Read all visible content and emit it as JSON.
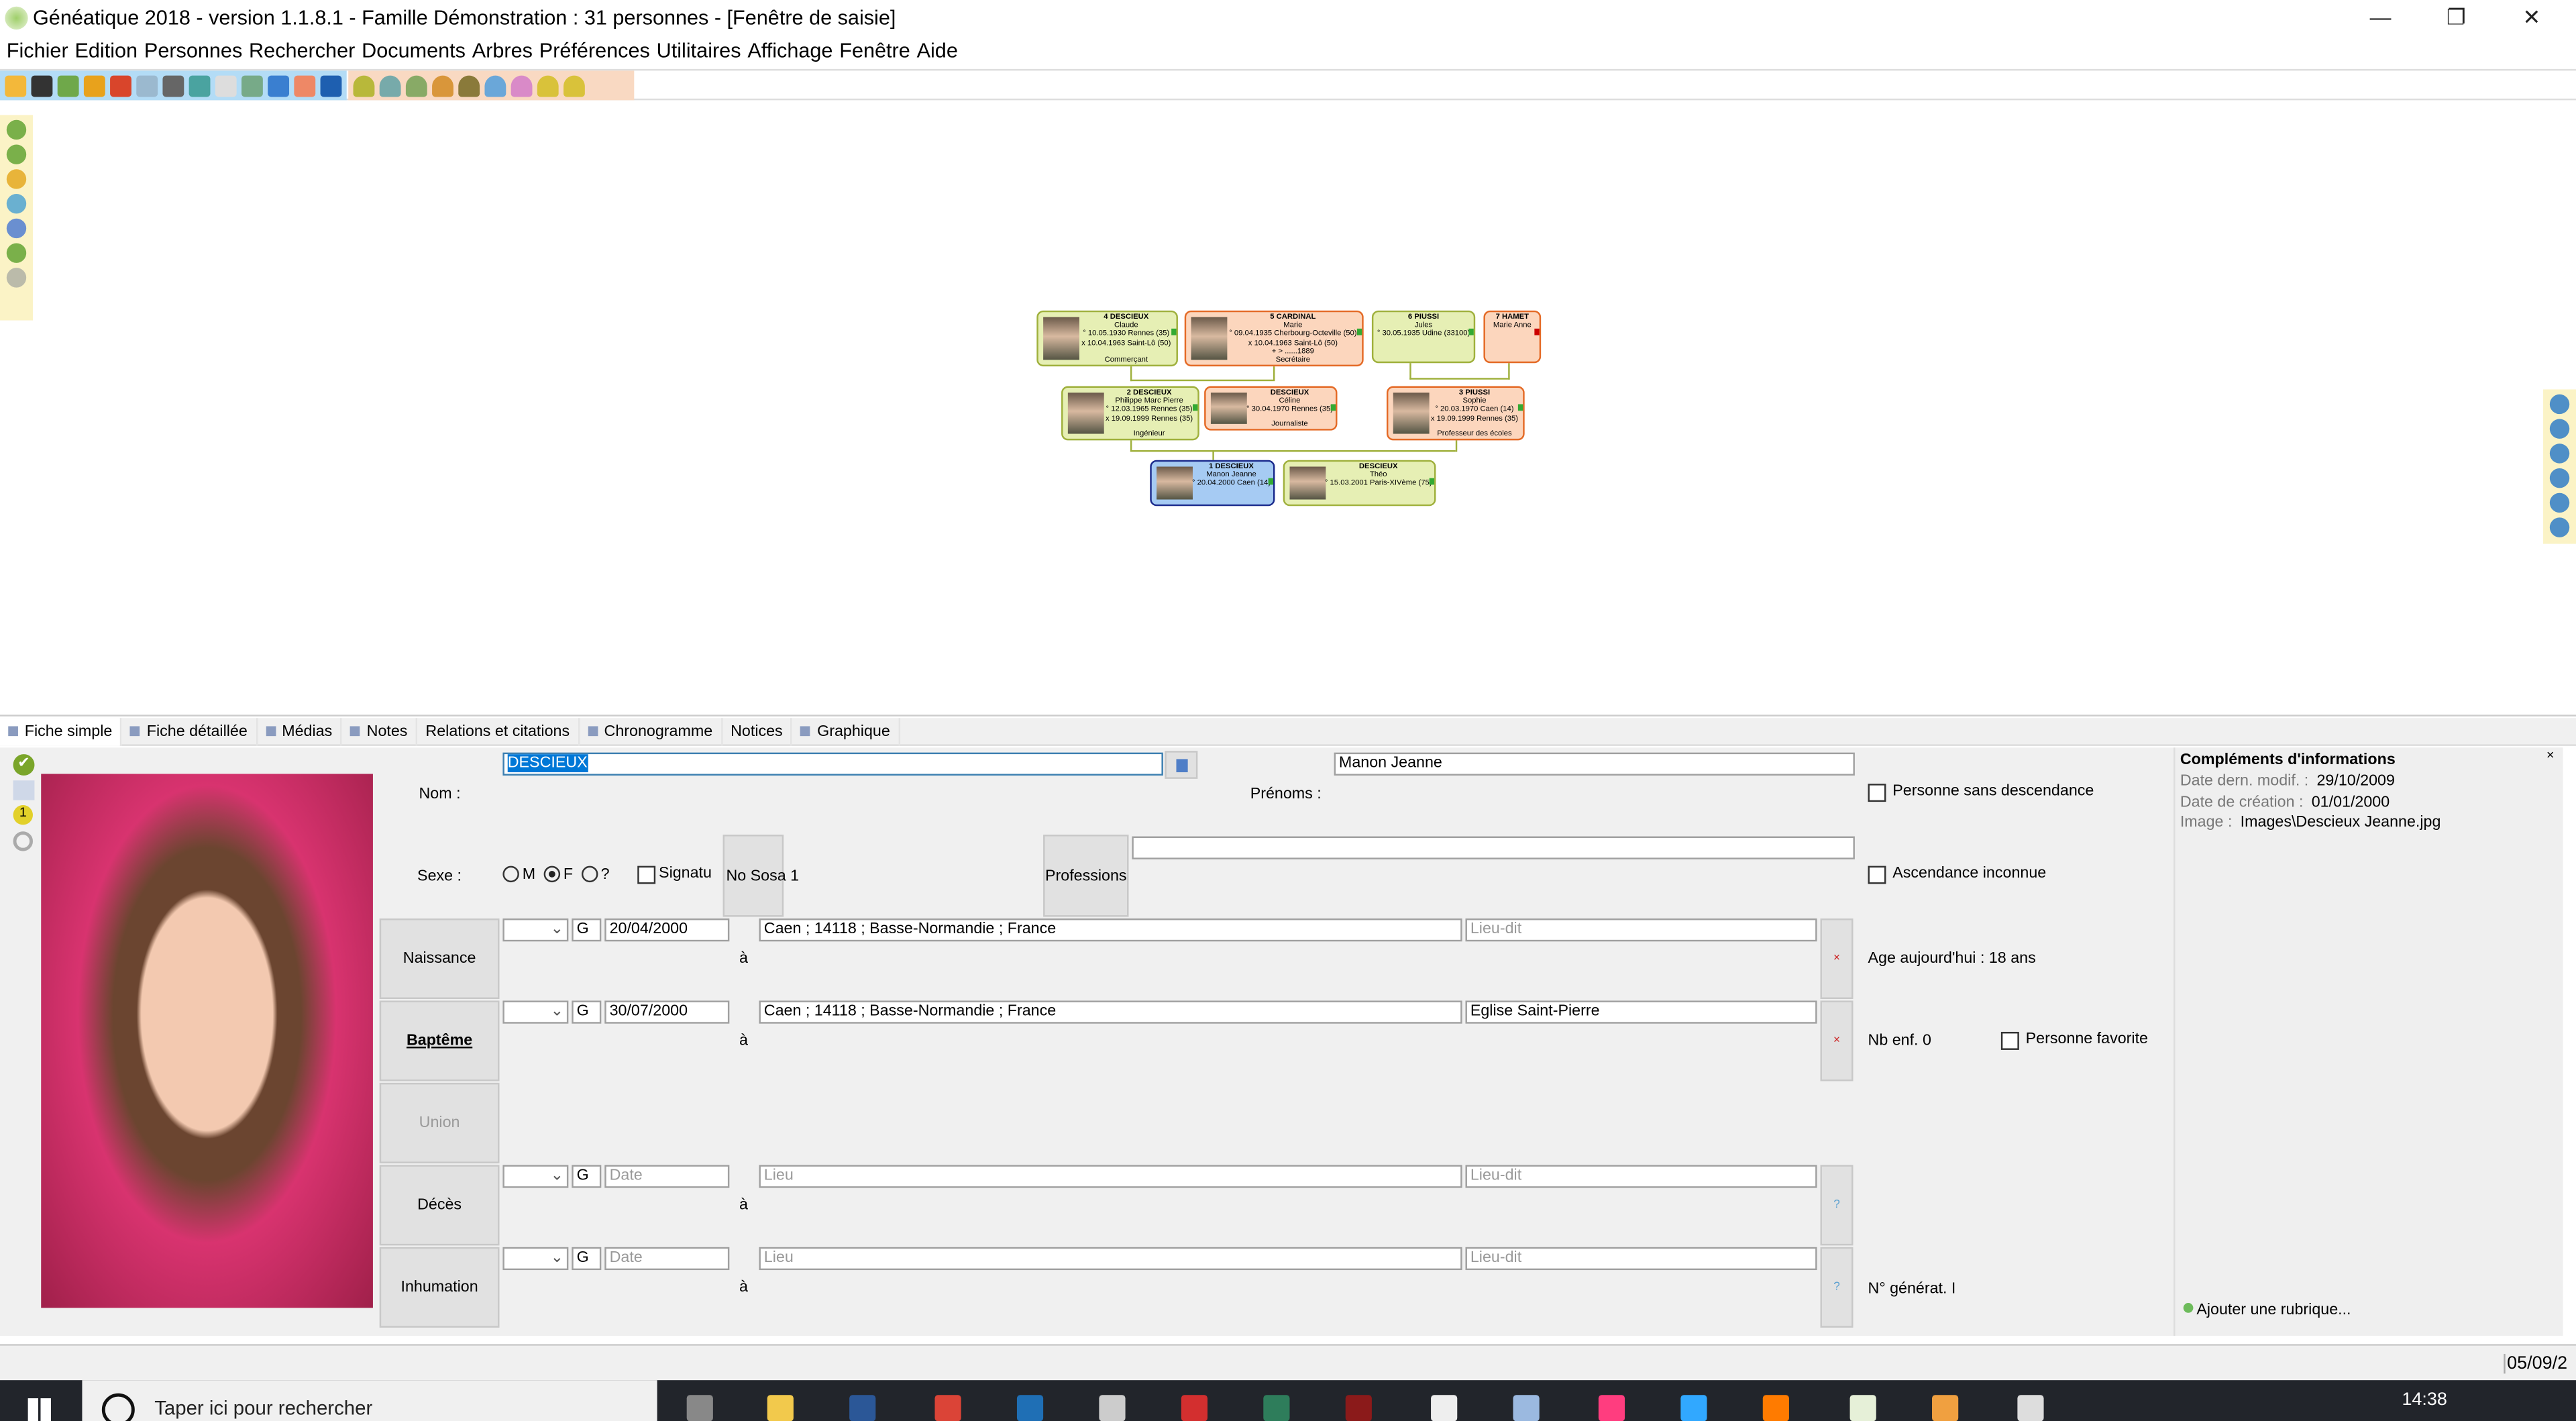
{
  "window": {
    "title": "Généatique 2018 - version 1.1.8.1 - Famille Démonstration : 31 personnes - [Fenêtre de saisie]",
    "minimize": "—",
    "restore": "❐",
    "close": "✕"
  },
  "menu": [
    "Fichier",
    "Edition",
    "Personnes",
    "Rechercher",
    "Documents",
    "Arbres",
    "Préférences",
    "Utilitaires",
    "Affichage",
    "Fenêtre",
    "Aide"
  ],
  "colors": {
    "toolbar_blue": "#b3dcf6",
    "toolbar_orange": "#f9d9c2",
    "male_box": "#e6efb4",
    "female_box": "#fcd6bd",
    "selected_box": "#a6cbf3",
    "taskbar": "#22252b"
  },
  "tree": {
    "persons": [
      {
        "id": "p4",
        "sex": "m",
        "name": "4 DESCIEUX",
        "first": "Claude",
        "lines": [
          "° 10.05.1930 Rennes (35)",
          "x 10.04.1963 Saint-Lô (50)"
        ],
        "job": "Commerçant"
      },
      {
        "id": "p5",
        "sex": "f",
        "name": "5 CARDINAL",
        "first": "Marie",
        "lines": [
          "° 09.04.1935 Cherbourg-Octeville (50)",
          "x 10.04.1963 Saint-Lô (50)",
          "+ > ......1889"
        ],
        "job": "Secrétaire"
      },
      {
        "id": "p6",
        "sex": "m",
        "name": "6 PIUSSI",
        "first": "Jules",
        "lines": [
          "° 30.05.1935 Udine (33100)"
        ],
        "job": ""
      },
      {
        "id": "p7",
        "sex": "f",
        "name": "7 HAMET",
        "first": "Marie Anne",
        "lines": [],
        "job": ""
      },
      {
        "id": "p2",
        "sex": "m",
        "name": "2 DESCIEUX",
        "first": "Philippe Marc Pierre",
        "lines": [
          "° 12.03.1965 Rennes (35)",
          "x 19.09.1999 Rennes (35)"
        ],
        "job": "Ingénieur"
      },
      {
        "id": "pc",
        "sex": "f",
        "name": "DESCIEUX",
        "first": "Céline",
        "lines": [
          "° 30.04.1970 Rennes (35)"
        ],
        "job": "Journaliste"
      },
      {
        "id": "p3",
        "sex": "f",
        "name": "3 PIUSSI",
        "first": "Sophie",
        "lines": [
          "° 20.03.1970 Caen (14)",
          "x 19.09.1999 Rennes (35)"
        ],
        "job": "Professeur des écoles"
      },
      {
        "id": "p1",
        "sex": "sel",
        "name": "1 DESCIEUX",
        "first": "Manon Jeanne",
        "lines": [
          "° 20.04.2000 Caen (14)"
        ],
        "job": ""
      },
      {
        "id": "pt",
        "sex": "m",
        "name": "DESCIEUX",
        "first": "Théo",
        "lines": [
          "° 15.03.2001 Paris-XIVème (75)"
        ],
        "job": ""
      }
    ]
  },
  "tabs": [
    "Fiche simple",
    "Fiche détaillée",
    "Médias",
    "Notes",
    "Relations et citations",
    "Chronogramme",
    "Notices",
    "Graphique"
  ],
  "form": {
    "nom_label": "Nom :",
    "nom_value": "DESCIEUX",
    "prenoms_label": "Prénoms :",
    "prenoms_value": "Manon Jeanne",
    "sexe_label": "Sexe :",
    "sex_options": [
      "M",
      "F",
      "?"
    ],
    "sex_selected": "F",
    "signature_label": "Signatu",
    "sosa_label": "No Sosa 1",
    "professions_label": "Professions",
    "professions_value": "",
    "sans_descendance": "Personne sans descendance",
    "ascendance_inconnue": "Ascendance inconnue",
    "a": "à",
    "events": [
      {
        "label": "Naissance",
        "cal": "G",
        "date": "20/04/2000",
        "place": "Caen ; 14118 ; Basse-Normandie ; France",
        "lieudit": "",
        "side": "×",
        "bold": false,
        "disabled": false
      },
      {
        "label": "Baptême",
        "cal": "G",
        "date": "30/07/2000",
        "place": "Caen ; 14118 ; Basse-Normandie ; France",
        "lieudit": "Eglise Saint-Pierre",
        "side": "×",
        "bold": true,
        "disabled": false
      },
      {
        "label": "Union",
        "disabled": true
      },
      {
        "label": "Décès",
        "cal": "G",
        "date": "",
        "place": "",
        "lieudit": "",
        "side": "?",
        "bold": false,
        "disabled": false
      },
      {
        "label": "Inhumation",
        "cal": "G",
        "date": "",
        "place": "",
        "lieudit": "",
        "side": "?",
        "bold": false,
        "disabled": false
      }
    ],
    "placeholders": {
      "date": "Date",
      "place": "Lieu",
      "lieudit": "Lieu-dit"
    },
    "age": "Age aujourd'hui : 18 ans",
    "nb_enf": "Nb enf. 0",
    "favorite": "Personne favorite",
    "generation": "N° générat. I"
  },
  "right_panel": {
    "title": "Compléments d'informations",
    "close": "×",
    "rows": [
      {
        "k": "Date dern. modif. :",
        "v": "29/10/2009"
      },
      {
        "k": "Date de création :",
        "v": "01/01/2000"
      },
      {
        "k": "Image :",
        "v": "Images\\Descieux Jeanne.jpg"
      }
    ],
    "add": "Ajouter une rubrique..."
  },
  "status": {
    "date": "05/09/2"
  },
  "taskbar": {
    "search_placeholder": "Taper ici pour rechercher",
    "time": "14:38"
  }
}
